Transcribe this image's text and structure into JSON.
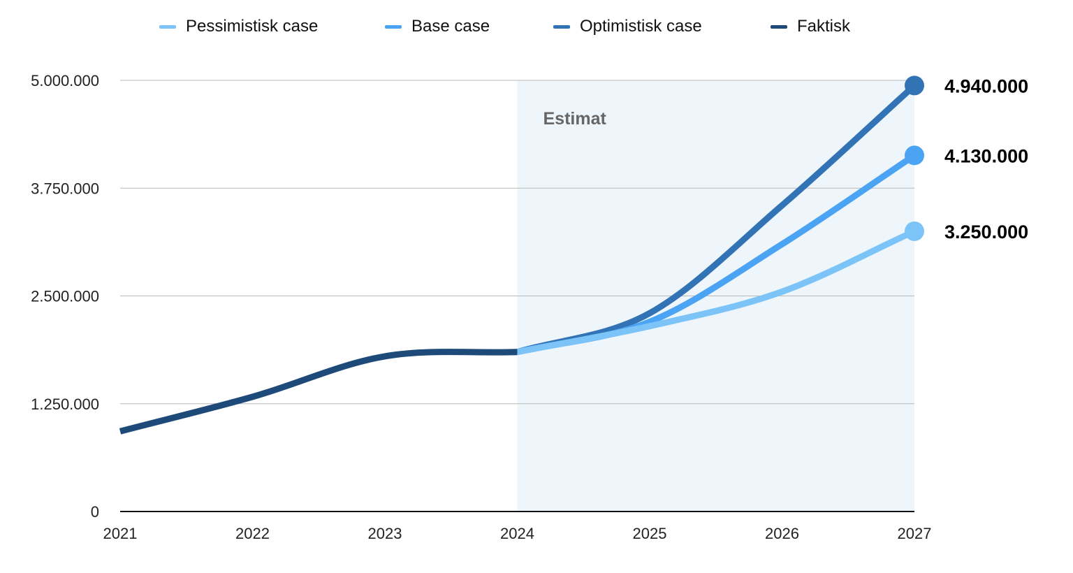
{
  "chart_data": {
    "type": "line",
    "x": [
      2021,
      2022,
      2023,
      2024,
      2025,
      2026,
      2027
    ],
    "x_tick_labels": [
      "2021",
      "2022",
      "2023",
      "2024",
      "2025",
      "2026",
      "2027"
    ],
    "y_tick_values": [
      0,
      1250000,
      2500000,
      3750000,
      5000000
    ],
    "y_tick_labels": [
      "0",
      "1.250.000",
      "2.500.000",
      "3.750.000",
      "5.000.000"
    ],
    "ylim": [
      0,
      5000000
    ],
    "xlim": [
      2021,
      2027
    ],
    "grid": "horizontal",
    "legend_position": "top",
    "shaded_region": {
      "from": 2024,
      "to": 2027,
      "label": "Estimat",
      "color": "#eef6fb"
    },
    "series": [
      {
        "name": "Pessimistisk case",
        "color": "#7cc3f7",
        "x": [
          2024,
          2025,
          2026,
          2027
        ],
        "values": [
          1850000,
          2150000,
          2550000,
          3250000
        ],
        "end_label": "3.250.000"
      },
      {
        "name": "Base case",
        "color": "#4ba3f3",
        "x": [
          2024,
          2025,
          2026,
          2027
        ],
        "values": [
          1850000,
          2200000,
          3100000,
          4130000
        ],
        "end_label": "4.130.000"
      },
      {
        "name": "Optimistisk case",
        "color": "#3273b6",
        "x": [
          2024,
          2025,
          2026,
          2027
        ],
        "values": [
          1850000,
          2300000,
          3550000,
          4940000
        ],
        "end_label": "4.940.000"
      },
      {
        "name": "Faktisk",
        "color": "#1e4a7a",
        "x": [
          2021,
          2022,
          2023,
          2024
        ],
        "values": [
          930000,
          1330000,
          1800000,
          1850000
        ],
        "end_label": ""
      }
    ]
  }
}
